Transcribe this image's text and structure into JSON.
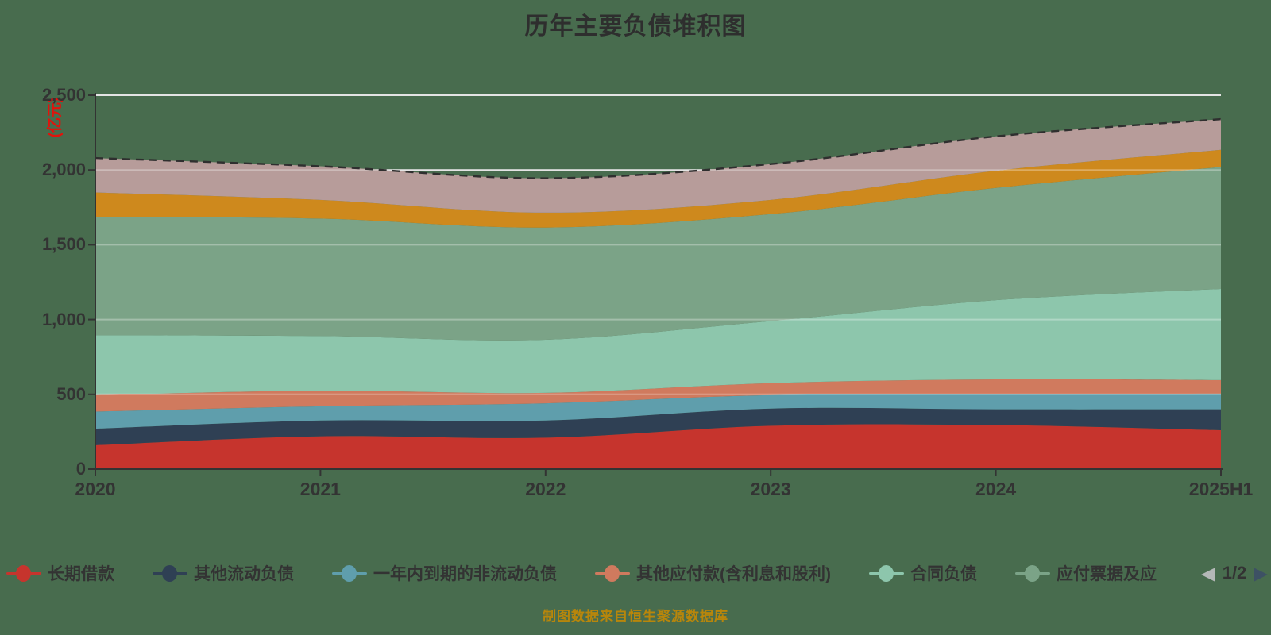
{
  "title": "历年主要负债堆积图",
  "y_axis": {
    "name": "(亿元)",
    "name_color": "#e3120b",
    "ticks": [
      "0",
      "500",
      "1,000",
      "1,500",
      "2,000",
      "2,500"
    ],
    "max": 2500
  },
  "x_axis": {
    "categories": [
      "2020",
      "2021",
      "2022",
      "2023",
      "2024",
      "2025H1"
    ]
  },
  "legend": {
    "items": [
      {
        "label": "长期借款",
        "color": "#C6342D"
      },
      {
        "label": "其他流动负债",
        "color": "#2F4054"
      },
      {
        "label": "一年内到期的非流动负债",
        "color": "#5F9EAC"
      },
      {
        "label": "其他应付款(含利息和股利)",
        "color": "#D07A5E"
      },
      {
        "label": "合同负债",
        "color": "#8DC6AC"
      },
      {
        "label": "应付票据及应",
        "color": "#7BA387"
      }
    ],
    "pagination": {
      "current": "1/2",
      "prev_color": "#B4B8B7",
      "next_color": "#3D5164"
    }
  },
  "footer": "制图数据来自恒生聚源数据库",
  "colors": {
    "background": "#486C4E",
    "axis": "#333333",
    "gridline": "#D8D8D8",
    "top_dash_line": "#2F2F2F",
    "text": "#333333",
    "footer_text": "#B8860B"
  },
  "chart_data": {
    "type": "area",
    "stacked": true,
    "smooth": true,
    "title": "历年主要负债堆积图",
    "ylabel": "(亿元)",
    "ylim": [
      0,
      2500
    ],
    "y_tick_step": 500,
    "grid": true,
    "legend_position": "bottom",
    "x": [
      "2020",
      "2021",
      "2022",
      "2023",
      "2024",
      "2025H1"
    ],
    "series": [
      {
        "name": "长期借款",
        "color": "#C6342D",
        "values": [
          160,
          220,
          210,
          290,
          295,
          260
        ]
      },
      {
        "name": "其他流动负债",
        "color": "#2F4054",
        "values": [
          110,
          105,
          115,
          115,
          105,
          140
        ]
      },
      {
        "name": "一年内到期的非流动负债",
        "color": "#5F9EAC",
        "values": [
          115,
          95,
          115,
          90,
          100,
          105
        ]
      },
      {
        "name": "其他应付款(含利息和股利)",
        "color": "#D07A5E",
        "values": [
          110,
          105,
          70,
          80,
          100,
          90
        ]
      },
      {
        "name": "合同负债",
        "color": "#8DC6AC",
        "values": [
          400,
          365,
          355,
          415,
          530,
          610
        ]
      },
      {
        "name": "应付票据及应",
        "color": "#7BA387",
        "values": [
          790,
          785,
          750,
          715,
          750,
          815
        ]
      },
      {
        "name": "legend-page-2-series-1",
        "color": "#CE891D",
        "values": [
          165,
          125,
          100,
          95,
          115,
          115
        ]
      },
      {
        "name": "legend-page-2-series-2",
        "color": "#B79C9A",
        "values": [
          230,
          225,
          230,
          240,
          230,
          205
        ]
      }
    ],
    "totals": [
      2080,
      2025,
      1945,
      2040,
      2225,
      2340
    ]
  }
}
